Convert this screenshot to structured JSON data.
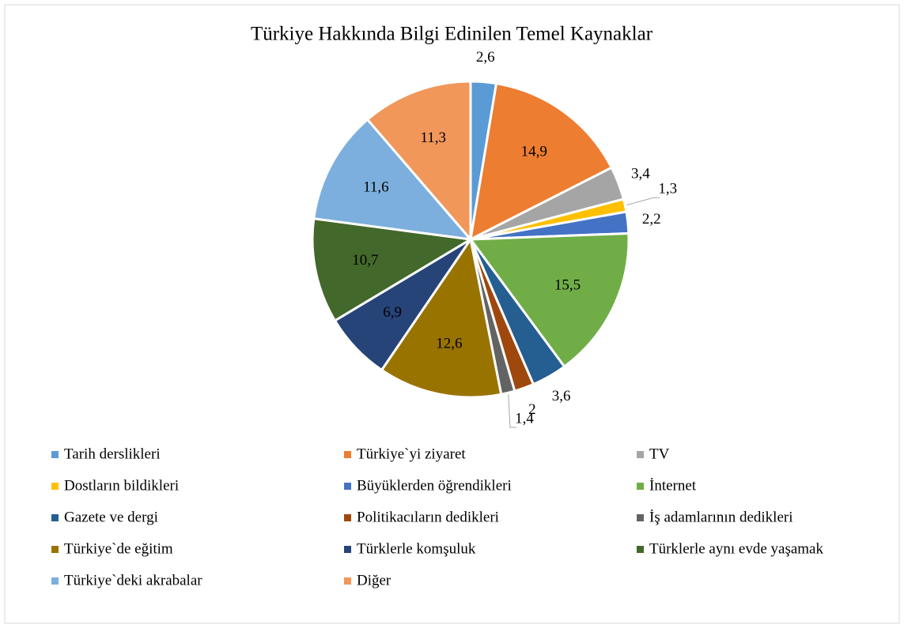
{
  "chart_data": {
    "type": "pie",
    "title": "Türkiye  Hakkında  Bilgi  Edinilen  Temel  Kaynaklar",
    "categories": [
      "Tarih derslikleri",
      "Türkiye`yi ziyaret",
      "TV",
      "Dostların bildikleri",
      "Büyüklerden öğrendikleri",
      "İnternet",
      "Gazete ve dergi",
      "Politikacıların dedikleri",
      "İş adamlarının dedikleri",
      "Türkiye`de eğitim",
      "Türklerle komşuluk",
      "Türklerle aynı evde yaşamak",
      "Türkiye`deki akrabalar",
      "Diğer"
    ],
    "values": [
      2.6,
      14.9,
      3.4,
      1.3,
      2.2,
      15.5,
      3.6,
      2,
      1.4,
      12.6,
      6.9,
      10.7,
      11.6,
      11.3
    ],
    "value_labels": [
      "2,6",
      "14,9",
      "3,4",
      "1,3",
      "2,2",
      "15,5",
      "3,6",
      "2",
      "1,4",
      "12,6",
      "6,9",
      "10,7",
      "11,6",
      "11,3"
    ],
    "colors": [
      "#5b9bd5",
      "#ed7d31",
      "#a5a5a5",
      "#ffc000",
      "#4472c4",
      "#70ad47",
      "#255e91",
      "#9e480e",
      "#636363",
      "#997300",
      "#264478",
      "#43682b",
      "#7cafdd",
      "#f1975a"
    ],
    "legend": "bottom"
  }
}
